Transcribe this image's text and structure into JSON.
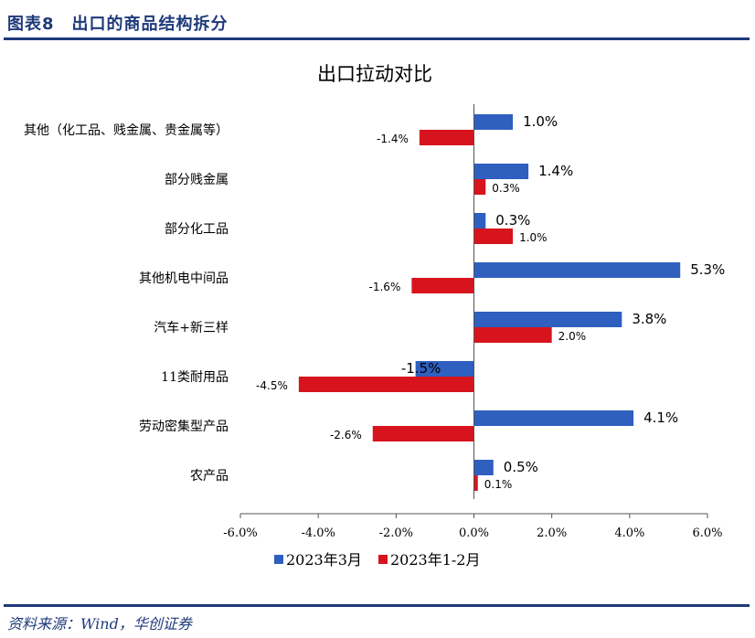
{
  "figure": {
    "title": "图表8　出口的商品结构拆分",
    "source": "资料来源：Wind，华创证券"
  },
  "chart_data": {
    "type": "bar",
    "orientation": "horizontal",
    "title": "出口拉动对比",
    "xlabel": "",
    "ylabel": "",
    "xlim": [
      -6.0,
      6.0
    ],
    "x_ticks": [
      "-6.0%",
      "-4.0%",
      "-2.0%",
      "0.0%",
      "2.0%",
      "4.0%",
      "6.0%"
    ],
    "grid": false,
    "legend_position": "bottom",
    "categories": [
      "其他（化工品、贱金属、贵金属等）",
      "部分贱金属",
      "部分化工品",
      "其他机电中间品",
      "汽车+新三样",
      "11类耐用品",
      "劳动密集型产品",
      "农产品"
    ],
    "series": [
      {
        "name": "2023年3月",
        "color": "#2f5fbf",
        "values": [
          1.0,
          1.4,
          0.3,
          5.3,
          3.8,
          -1.5,
          4.1,
          0.5
        ],
        "labels": [
          "1.0%",
          "1.4%",
          "0.3%",
          "5.3%",
          "3.8%",
          "-1.5%",
          "4.1%",
          "0.5%"
        ]
      },
      {
        "name": "2023年1-2月",
        "color": "#d7141e",
        "values": [
          -1.4,
          0.3,
          1.0,
          -1.6,
          2.0,
          -4.5,
          -2.6,
          0.1
        ],
        "labels": [
          "-1.4%",
          "0.3%",
          "1.0%",
          "-1.6%",
          "2.0%",
          "-4.5%",
          "-2.6%",
          "0.1%"
        ]
      }
    ]
  }
}
